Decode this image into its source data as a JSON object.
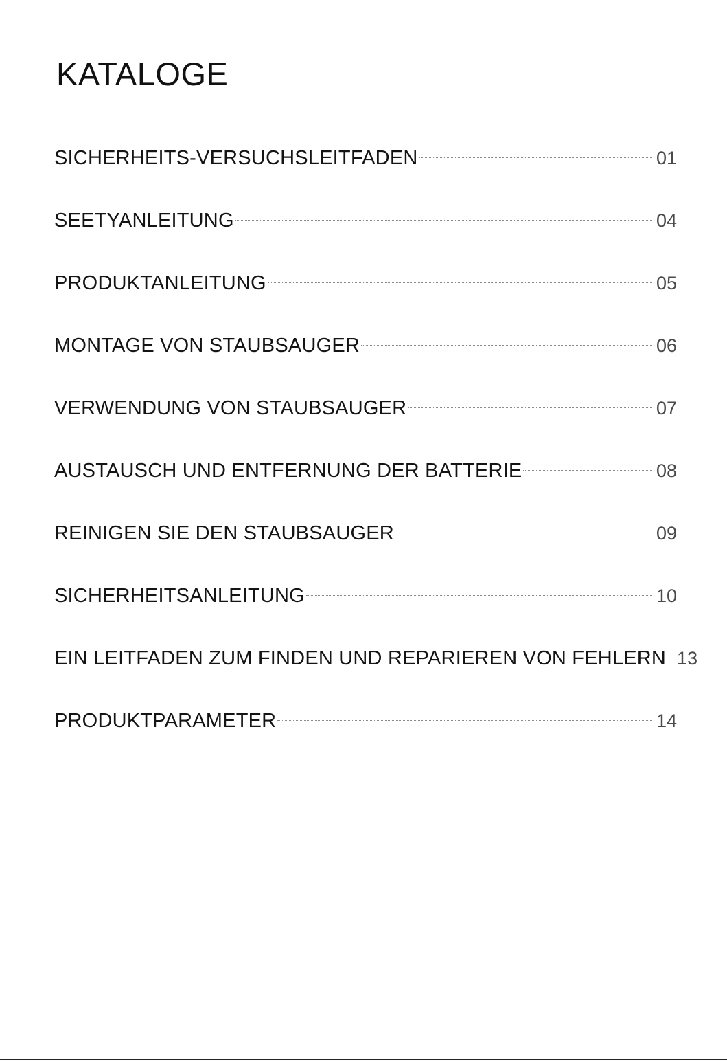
{
  "page": {
    "title": "KATALOGE"
  },
  "toc": {
    "entries": [
      {
        "label": "SICHERHEITS-VERSUCHSLEITFADEN",
        "page": "01"
      },
      {
        "label": "SEETYANLEITUNG",
        "page": "04"
      },
      {
        "label": "PRODUKTANLEITUNG",
        "page": "05"
      },
      {
        "label": "MONTAGE VON STAUBSAUGER",
        "page": "06"
      },
      {
        "label": "VERWENDUNG VON STAUBSAUGER",
        "page": "07"
      },
      {
        "label": "AUSTAUSCH UND ENTFERNUNG DER BATTERIE",
        "page": "08"
      },
      {
        "label": "REINIGEN SIE DEN STAUBSAUGER",
        "page": "09"
      },
      {
        "label": "SICHERHEITSANLEITUNG",
        "page": "10"
      },
      {
        "label": "EIN LEITFADEN ZUM FINDEN UND REPARIEREN VON FEHLERN",
        "page": "13"
      },
      {
        "label": "PRODUKTPARAMETER",
        "page": "14"
      }
    ]
  }
}
